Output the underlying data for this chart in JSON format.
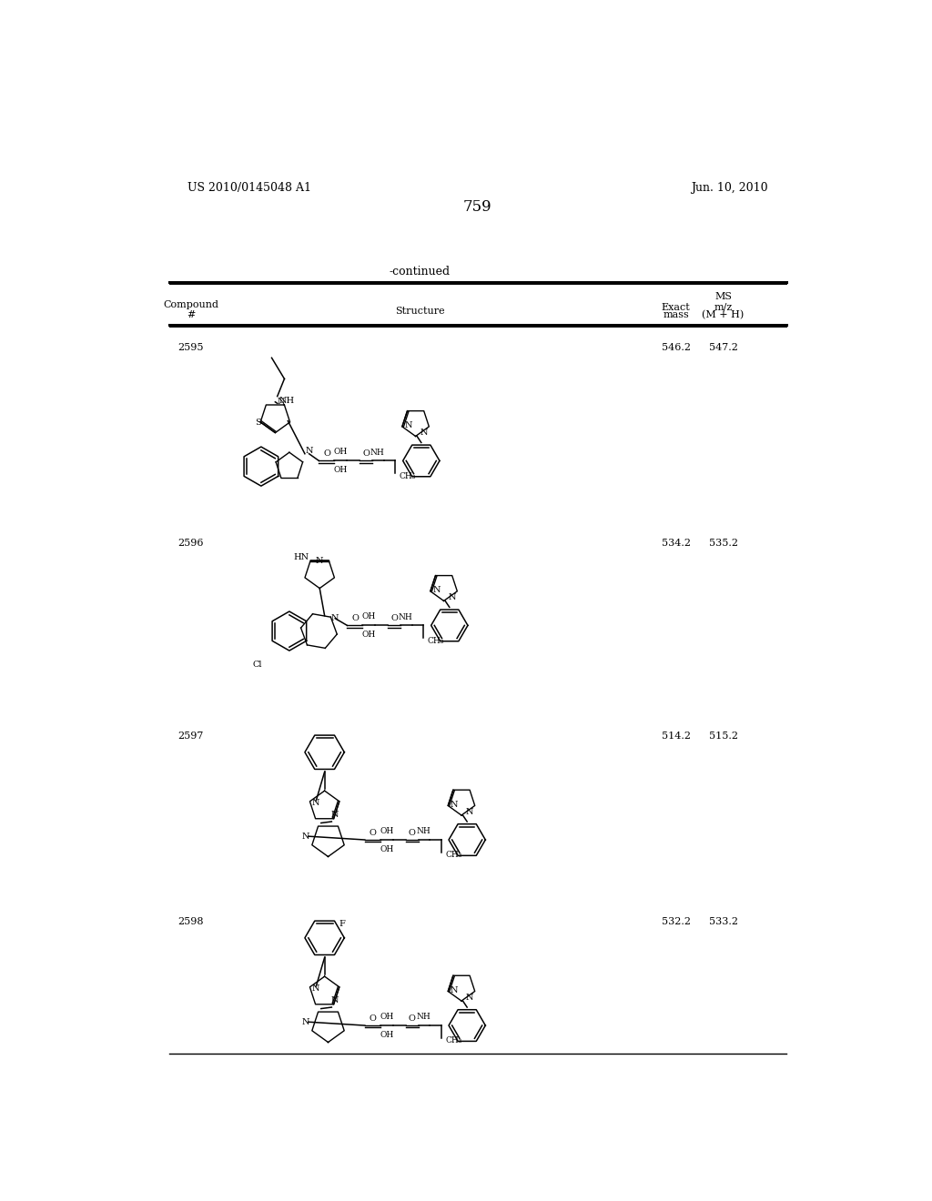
{
  "background_color": "#ffffff",
  "page_number": "759",
  "patent_number": "US 2010/0145048 A1",
  "patent_date": "Jun. 10, 2010",
  "table_header": "-continued",
  "compounds": [
    {
      "id": "2595",
      "exact_mass": "546.2",
      "ms": "547.2"
    },
    {
      "id": "2596",
      "exact_mass": "534.2",
      "ms": "535.2"
    },
    {
      "id": "2597",
      "exact_mass": "514.2",
      "ms": "515.2"
    },
    {
      "id": "2598",
      "exact_mass": "532.2",
      "ms": "533.2"
    }
  ],
  "line_color": "#000000",
  "text_color": "#000000"
}
